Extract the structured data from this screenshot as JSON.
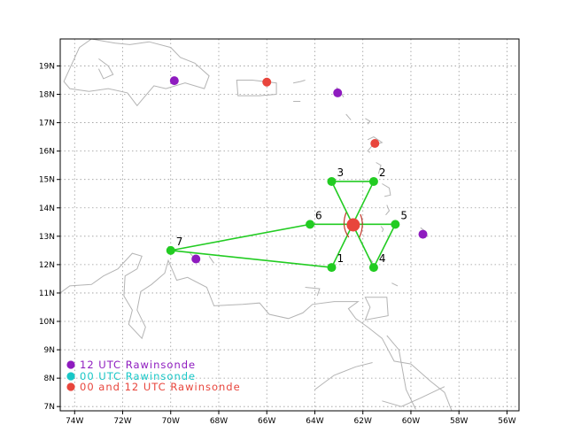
{
  "map": {
    "lon_range": [
      -74.6,
      -55.5
    ],
    "lat_range": [
      6.85,
      19.95
    ],
    "lon_ticks": [
      {
        "lon": -74,
        "label": "74W"
      },
      {
        "lon": -72,
        "label": "72W"
      },
      {
        "lon": -70,
        "label": "70W"
      },
      {
        "lon": -68,
        "label": "68W"
      },
      {
        "lon": -66,
        "label": "66W"
      },
      {
        "lon": -64,
        "label": "64W"
      },
      {
        "lon": -62,
        "label": "62W"
      },
      {
        "lon": -60,
        "label": "60W"
      },
      {
        "lon": -58,
        "label": "58W"
      },
      {
        "lon": -56,
        "label": "56W"
      }
    ],
    "lat_ticks": [
      {
        "lat": 7,
        "label": "7N"
      },
      {
        "lat": 8,
        "label": "8N"
      },
      {
        "lat": 9,
        "label": "9N"
      },
      {
        "lat": 10,
        "label": "10N"
      },
      {
        "lat": 11,
        "label": "11N"
      },
      {
        "lat": 12,
        "label": "12N"
      },
      {
        "lat": 13,
        "label": "13N"
      },
      {
        "lat": 14,
        "label": "14N"
      },
      {
        "lat": 15,
        "label": "15N"
      },
      {
        "lat": 16,
        "label": "16N"
      },
      {
        "lat": 17,
        "label": "17N"
      },
      {
        "lat": 18,
        "label": "18N"
      },
      {
        "lat": 19,
        "label": "19N"
      }
    ],
    "grid": "dotted",
    "colors": {
      "coast": "#b4b4b4",
      "grid": "#9a9a9a",
      "pattern": "#22cc22",
      "center": "#e8453c",
      "wind_barb": "#c0392b",
      "sonde_12": "#8e1bbf",
      "sonde_00": "#19c7c7",
      "sonde_both": "#e8453c"
    },
    "center": {
      "lon": -62.4,
      "lat": 13.4
    },
    "drop_points": [
      {
        "label": "1",
        "lon": -63.3,
        "lat": 11.9
      },
      {
        "label": "2",
        "lon": -61.55,
        "lat": 14.93
      },
      {
        "label": "3",
        "lon": -63.3,
        "lat": 14.93
      },
      {
        "label": "4",
        "lon": -61.55,
        "lat": 11.9
      },
      {
        "label": "5",
        "lon": -60.65,
        "lat": 13.42
      },
      {
        "label": "6",
        "lon": -64.2,
        "lat": 13.42
      },
      {
        "label": "7",
        "lon": -70.0,
        "lat": 12.5
      }
    ],
    "flight_segments": [
      [
        "7",
        "6"
      ],
      [
        "6",
        "5"
      ],
      [
        "5",
        "4"
      ],
      [
        "4",
        "3"
      ],
      [
        "3",
        "2"
      ],
      [
        "2",
        "1"
      ],
      [
        "1",
        "7"
      ]
    ],
    "rawinsondes": [
      {
        "type": "12",
        "lon": -69.85,
        "lat": 18.48
      },
      {
        "type": "both",
        "lon": -66.0,
        "lat": 18.43
      },
      {
        "type": "12",
        "lon": -63.05,
        "lat": 18.05
      },
      {
        "type": "both",
        "lon": -61.5,
        "lat": 16.27
      },
      {
        "type": "12",
        "lon": -59.5,
        "lat": 13.07
      },
      {
        "type": "12",
        "lon": -68.95,
        "lat": 12.2
      }
    ]
  },
  "legend": [
    {
      "text": "12 UTC Rawinsonde",
      "color": "#8e1bbf"
    },
    {
      "text": "00 UTC Rawinsonde",
      "color": "#19c7c7"
    },
    {
      "text": "00 and 12 UTC Rawinsonde",
      "color": "#e8453c"
    }
  ]
}
